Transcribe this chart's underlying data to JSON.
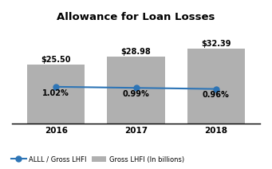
{
  "title": "Allowance for Loan Losses",
  "years": [
    "2016",
    "2017",
    "2018"
  ],
  "bar_values": [
    25.5,
    28.98,
    32.39
  ],
  "bar_labels": [
    "$25.50",
    "$28.98",
    "$32.39"
  ],
  "line_values": [
    1.02,
    0.99,
    0.96
  ],
  "line_labels": [
    "1.02%",
    "0.99%",
    "0.96%"
  ],
  "bar_color": "#b0b0b0",
  "line_color": "#2e75b6",
  "bar_width": 0.72,
  "legend_line_label": "ALLL / Gross LHFI",
  "legend_bar_label": "Gross LHFI (In billions)",
  "title_fontsize": 9.5,
  "label_fontsize": 7,
  "tick_fontsize": 7.5,
  "background_color": "#ffffff"
}
